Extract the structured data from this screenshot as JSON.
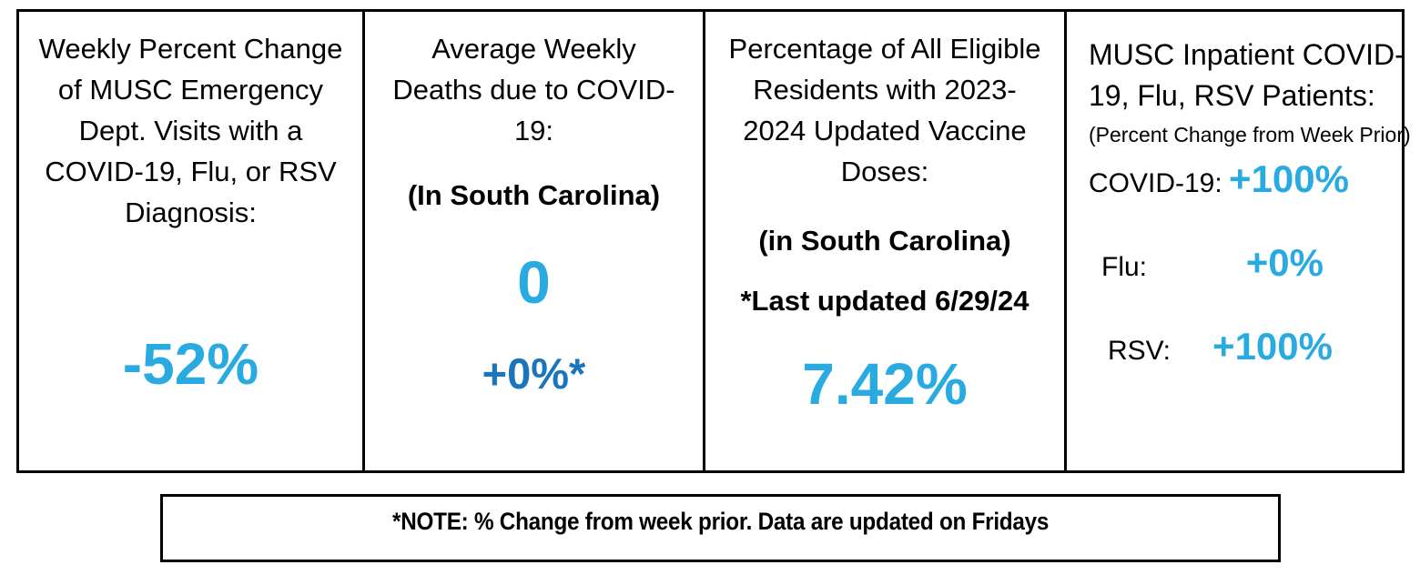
{
  "colors": {
    "accent_light_blue": "#29ABE2",
    "accent_dark_blue": "#1B75BC",
    "text": "#000000",
    "border": "#000000",
    "background": "#FFFFFF"
  },
  "panels": [
    {
      "id": "ed-visits",
      "title_lines": [
        "Weekly Percent Change",
        "of MUSC Emergency",
        "Dept. Visits with a",
        "COVID-19, Flu, or RSV",
        "Diagnosis:"
      ],
      "value": "-52%"
    },
    {
      "id": "weekly-deaths",
      "title_lines": [
        "Average Weekly",
        "Deaths due to COVID-",
        "19:"
      ],
      "subtitle": "(In South Carolina)",
      "value": "0",
      "secondary_value": "+0%*"
    },
    {
      "id": "vaccine-doses",
      "title_lines": [
        "Percentage of All Eligible",
        "Residents with 2023-",
        "2024 Updated Vaccine",
        "Doses:"
      ],
      "subtitle": "(in South Carolina)",
      "update_note": "*Last updated 6/29/24",
      "value": "7.42%"
    },
    {
      "id": "inpatient",
      "title_lines": [
        "MUSC Inpatient COVID-",
        "19, Flu, RSV Patients:"
      ],
      "subtitle": "(Percent Change from Week Prior)",
      "rows": [
        {
          "label": "COVID-19:",
          "value": "+100%"
        },
        {
          "label": "Flu:",
          "value": "+0%"
        },
        {
          "label": "RSV:",
          "value": "+100%"
        }
      ]
    }
  ],
  "footnote": {
    "text": "*NOTE: % Change from week prior. Data are updated on Fridays"
  }
}
